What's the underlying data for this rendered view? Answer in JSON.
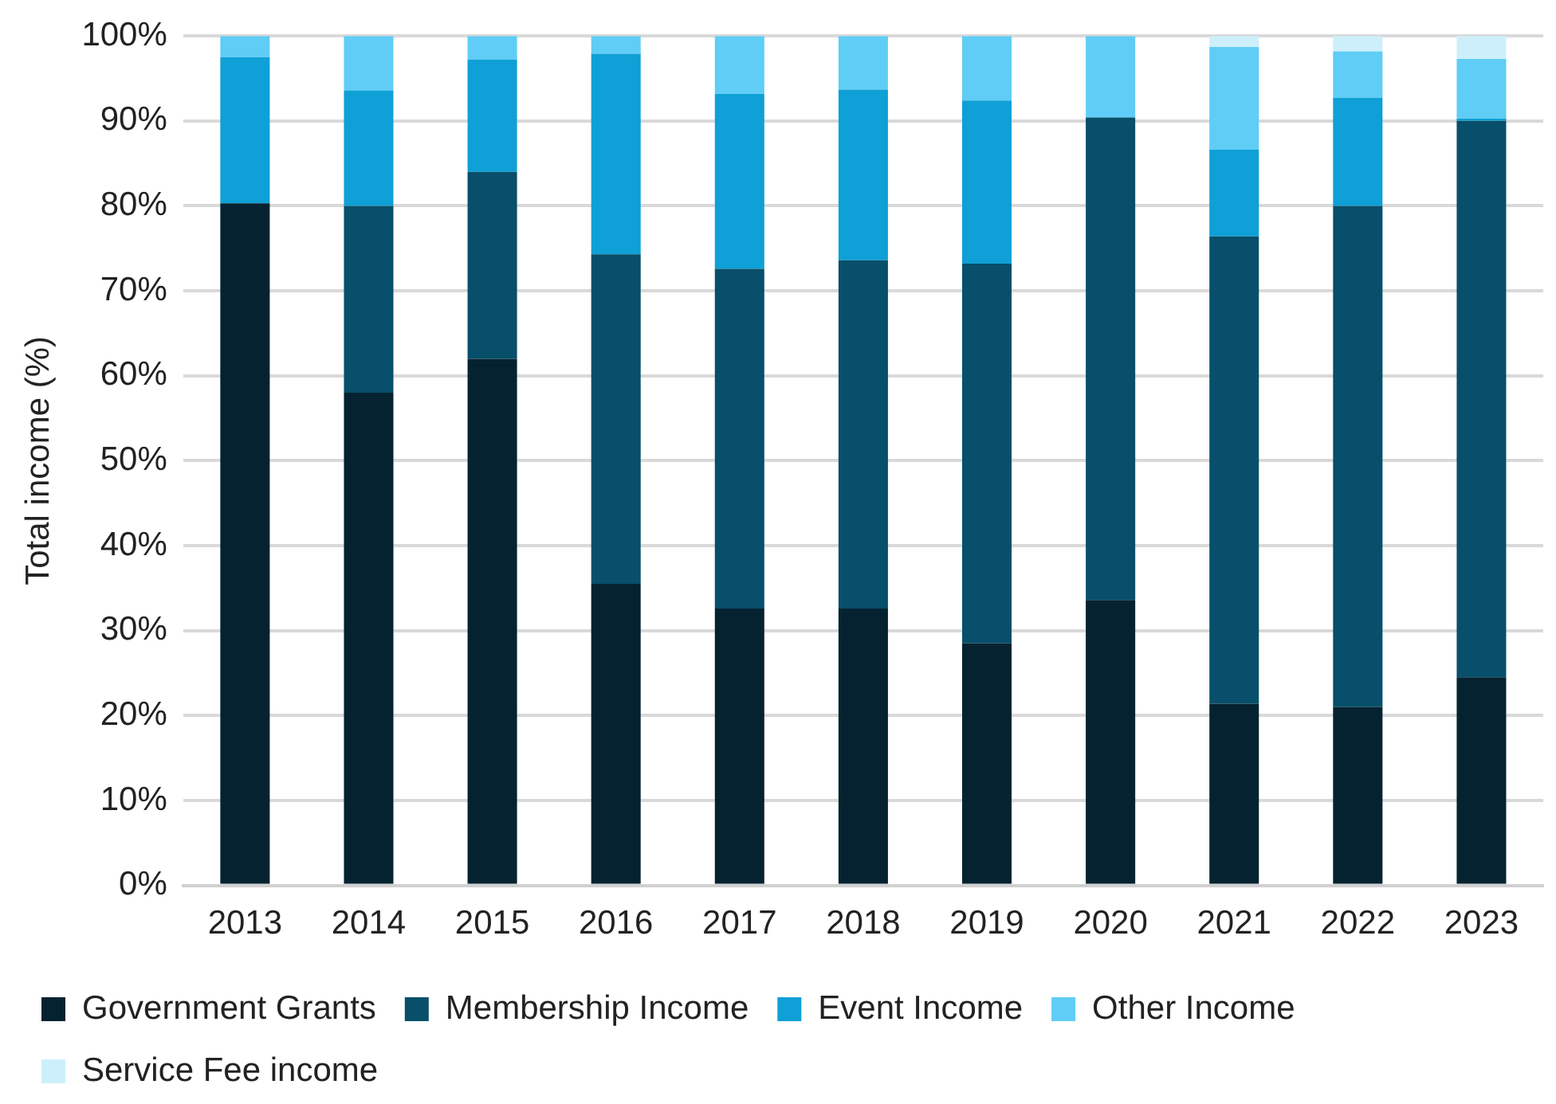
{
  "chart_data": {
    "type": "bar",
    "stacked": true,
    "ylabel": "Total income (%)",
    "categories": [
      "2013",
      "2014",
      "2015",
      "2016",
      "2017",
      "2018",
      "2019",
      "2020",
      "2021",
      "2022",
      "2023"
    ],
    "series": [
      {
        "name": "Government Grants",
        "color": "#052230",
        "values": [
          80.3,
          58,
          62,
          35.5,
          32.6,
          32.6,
          28.5,
          33.6,
          21.4,
          21,
          24.5
        ]
      },
      {
        "name": "Membership Income",
        "color": "#074f6a",
        "values": [
          0,
          22,
          22,
          38.8,
          40,
          41,
          44.7,
          56.8,
          55,
          59,
          65.5
        ]
      },
      {
        "name": "Event Income",
        "color": "#0ea0d6",
        "values": [
          17.2,
          13.6,
          13.2,
          23.6,
          20.6,
          20.1,
          19.2,
          0,
          10.2,
          12.7,
          0.3
        ]
      },
      {
        "name": "Other Income",
        "color": "#5fcdf5",
        "values": [
          2.5,
          6.4,
          2.8,
          2.1,
          6.8,
          6.3,
          7.6,
          9.6,
          12.1,
          5.5,
          7
        ]
      },
      {
        "name": "Service Fee income",
        "color": "#cdeffb",
        "values": [
          0,
          0,
          0,
          0,
          0,
          0,
          0,
          0,
          1.3,
          1.8,
          2.7
        ]
      }
    ],
    "ylim": [
      0,
      100
    ],
    "yticks": [
      {
        "value": 0,
        "label": "0%"
      },
      {
        "value": 10,
        "label": "10%"
      },
      {
        "value": 20,
        "label": "20%"
      },
      {
        "value": 30,
        "label": "30%"
      },
      {
        "value": 40,
        "label": "40%"
      },
      {
        "value": 50,
        "label": "50%"
      },
      {
        "value": 60,
        "label": "60%"
      },
      {
        "value": 70,
        "label": "70%"
      },
      {
        "value": 80,
        "label": "80%"
      },
      {
        "value": 90,
        "label": "90%"
      },
      {
        "value": 100,
        "label": "100%"
      }
    ],
    "grid": "y",
    "legend": "bottom"
  }
}
